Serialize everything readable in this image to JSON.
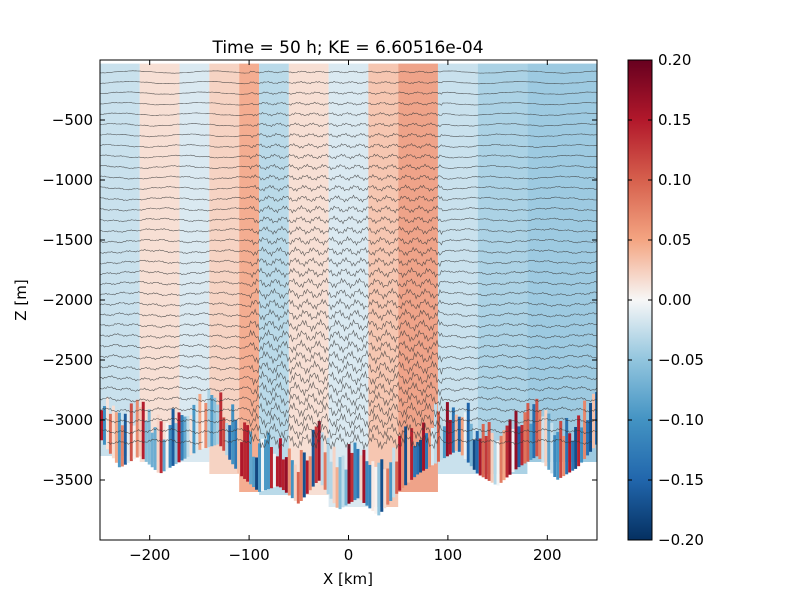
{
  "chart_data": {
    "type": "heatmap",
    "title": "Time = 50 h; KE = 6.60516e-04",
    "xlabel": "X [km]",
    "ylabel": "Z [m]",
    "xlim": [
      -250,
      250
    ],
    "ylim": [
      -4000,
      0
    ],
    "xticks": [
      {
        "value": -200,
        "label": "−200"
      },
      {
        "value": -100,
        "label": "−100"
      },
      {
        "value": 0,
        "label": "0"
      },
      {
        "value": 100,
        "label": "100"
      },
      {
        "value": 200,
        "label": "200"
      }
    ],
    "yticks": [
      {
        "value": -500,
        "label": "−500"
      },
      {
        "value": -1000,
        "label": "−1000"
      },
      {
        "value": -1500,
        "label": "−1500"
      },
      {
        "value": -2000,
        "label": "−2000"
      },
      {
        "value": -2500,
        "label": "−2500"
      },
      {
        "value": -3000,
        "label": "−3000"
      },
      {
        "value": -3500,
        "label": "−3500"
      }
    ],
    "colorbar": {
      "range": [
        -0.2,
        0.2
      ],
      "colormap": "RdBu_r",
      "ticks": [
        {
          "value": 0.2,
          "label": "0.20"
        },
        {
          "value": 0.15,
          "label": "0.15"
        },
        {
          "value": 0.1,
          "label": "0.10"
        },
        {
          "value": 0.05,
          "label": "0.05"
        },
        {
          "value": 0.0,
          "label": "0.00"
        },
        {
          "value": -0.05,
          "label": "−0.05"
        },
        {
          "value": -0.1,
          "label": "−0.10"
        },
        {
          "value": -0.15,
          "label": "−0.15"
        },
        {
          "value": -0.2,
          "label": "−0.20"
        }
      ]
    },
    "field": {
      "surface_top_z": -30,
      "contour_count": 36,
      "bottom_depth_profile": [
        {
          "x": -250,
          "z": -3150
        },
        {
          "x": -230,
          "z": -3400
        },
        {
          "x": -210,
          "z": -3300
        },
        {
          "x": -190,
          "z": -3450
        },
        {
          "x": -170,
          "z": -3350
        },
        {
          "x": -150,
          "z": -3250
        },
        {
          "x": -130,
          "z": -3200
        },
        {
          "x": -110,
          "z": -3450
        },
        {
          "x": -90,
          "z": -3600
        },
        {
          "x": -70,
          "z": -3550
        },
        {
          "x": -50,
          "z": -3700
        },
        {
          "x": -30,
          "z": -3500
        },
        {
          "x": -10,
          "z": -3750
        },
        {
          "x": 10,
          "z": -3650
        },
        {
          "x": 30,
          "z": -3800
        },
        {
          "x": 50,
          "z": -3600
        },
        {
          "x": 70,
          "z": -3450
        },
        {
          "x": 90,
          "z": -3350
        },
        {
          "x": 110,
          "z": -3250
        },
        {
          "x": 130,
          "z": -3450
        },
        {
          "x": 150,
          "z": -3550
        },
        {
          "x": 170,
          "z": -3400
        },
        {
          "x": 190,
          "z": -3300
        },
        {
          "x": 210,
          "z": -3500
        },
        {
          "x": 230,
          "z": -3400
        },
        {
          "x": 250,
          "z": -3200
        }
      ],
      "anomaly_bands": [
        {
          "x0": -250,
          "x1": -210,
          "value": -0.03
        },
        {
          "x0": -210,
          "x1": -170,
          "value": 0.02
        },
        {
          "x0": -170,
          "x1": -140,
          "value": -0.02
        },
        {
          "x0": -140,
          "x1": -110,
          "value": 0.03
        },
        {
          "x0": -110,
          "x1": -90,
          "value": 0.06
        },
        {
          "x0": -90,
          "x1": -60,
          "value": -0.04
        },
        {
          "x0": -60,
          "x1": -20,
          "value": 0.02
        },
        {
          "x0": -20,
          "x1": 20,
          "value": -0.02
        },
        {
          "x0": 20,
          "x1": 50,
          "value": 0.04
        },
        {
          "x0": 50,
          "x1": 90,
          "value": 0.07
        },
        {
          "x0": 90,
          "x1": 130,
          "value": -0.03
        },
        {
          "x0": 130,
          "x1": 180,
          "value": -0.05
        },
        {
          "x0": 180,
          "x1": 250,
          "value": -0.06
        }
      ]
    }
  }
}
